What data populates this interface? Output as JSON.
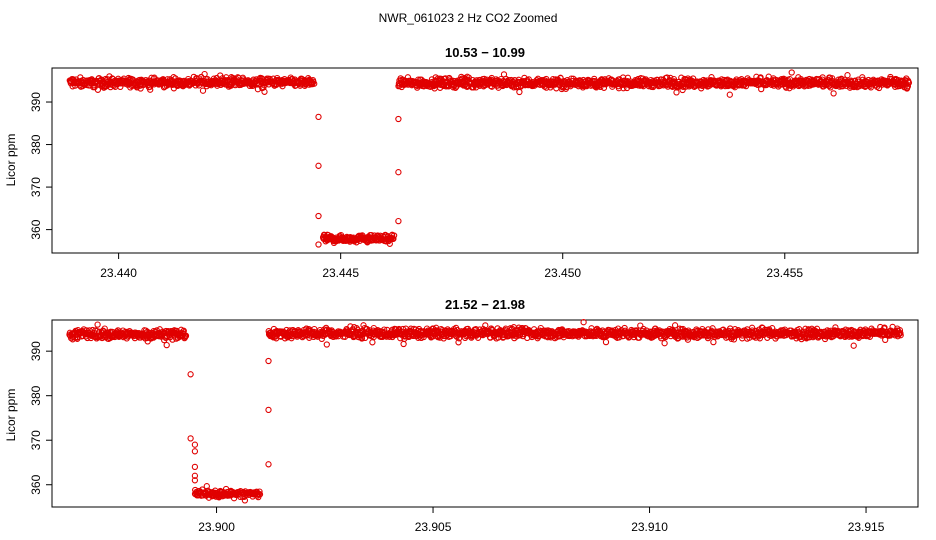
{
  "figure_title": "NWR_061023  2 Hz CO2 Zoomed",
  "point_color": "#e00000",
  "chart_data": [
    {
      "type": "scatter",
      "title": "10.53 − 10.99",
      "xlabel": "",
      "ylabel": "Licor ppm",
      "xlim": [
        23.4385,
        23.458
      ],
      "ylim": [
        354.5,
        398
      ],
      "x_ticks": [
        23.44,
        23.445,
        23.45,
        23.455
      ],
      "x_tick_labels": [
        "23.440",
        "23.445",
        "23.450",
        "23.455"
      ],
      "y_ticks": [
        360,
        370,
        380,
        390
      ],
      "y_tick_labels": [
        "360",
        "370",
        "380",
        "390"
      ],
      "grid": false,
      "marker": "open-circle",
      "x_start": 23.4389,
      "x_end": 23.4578,
      "segments": [
        {
          "x": [
            23.4389,
            23.4444
          ],
          "y_mean": 394.6,
          "y_spread": 1.6
        },
        {
          "x": [
            23.4446,
            23.4462
          ],
          "y_mean": 357.9,
          "y_spread": 1.2
        },
        {
          "x": [
            23.4463,
            23.4578
          ],
          "y_mean": 394.5,
          "y_spread": 1.6
        }
      ],
      "transition_points": [
        {
          "x": 23.4445,
          "y": 386.5
        },
        {
          "x": 23.4445,
          "y": 375.0
        },
        {
          "x": 23.4445,
          "y": 363.2
        },
        {
          "x": 23.4445,
          "y": 356.5
        },
        {
          "x": 23.4463,
          "y": 386.0
        },
        {
          "x": 23.4463,
          "y": 373.5
        },
        {
          "x": 23.4463,
          "y": 362.0
        }
      ]
    },
    {
      "type": "scatter",
      "title": "21.52 − 21.98",
      "xlabel": "",
      "ylabel": "Licor ppm",
      "xlim": [
        23.8962,
        23.9162
      ],
      "ylim": [
        355,
        397
      ],
      "x_ticks": [
        23.9,
        23.905,
        23.91,
        23.915
      ],
      "x_tick_labels": [
        "23.900",
        "23.905",
        "23.910",
        "23.915"
      ],
      "y_ticks": [
        360,
        370,
        380,
        390
      ],
      "y_tick_labels": [
        "360",
        "370",
        "380",
        "390"
      ],
      "grid": false,
      "marker": "open-circle",
      "x_start": 23.8966,
      "x_end": 23.9158,
      "segments": [
        {
          "x": [
            23.8966,
            23.8993
          ],
          "y_mean": 393.8,
          "y_spread": 1.6
        },
        {
          "x": [
            23.8995,
            23.901
          ],
          "y_mean": 358.0,
          "y_spread": 1.2
        },
        {
          "x": [
            23.9012,
            23.9158
          ],
          "y_mean": 394.0,
          "y_spread": 1.6
        }
      ],
      "transition_points": [
        {
          "x": 23.8994,
          "y": 384.8
        },
        {
          "x": 23.8994,
          "y": 370.4
        },
        {
          "x": 23.8995,
          "y": 369.0
        },
        {
          "x": 23.8995,
          "y": 367.5
        },
        {
          "x": 23.8995,
          "y": 364.0
        },
        {
          "x": 23.8995,
          "y": 362.0
        },
        {
          "x": 23.8995,
          "y": 361.0
        },
        {
          "x": 23.9012,
          "y": 387.8
        },
        {
          "x": 23.9012,
          "y": 376.8
        },
        {
          "x": 23.9012,
          "y": 364.6
        }
      ]
    }
  ]
}
